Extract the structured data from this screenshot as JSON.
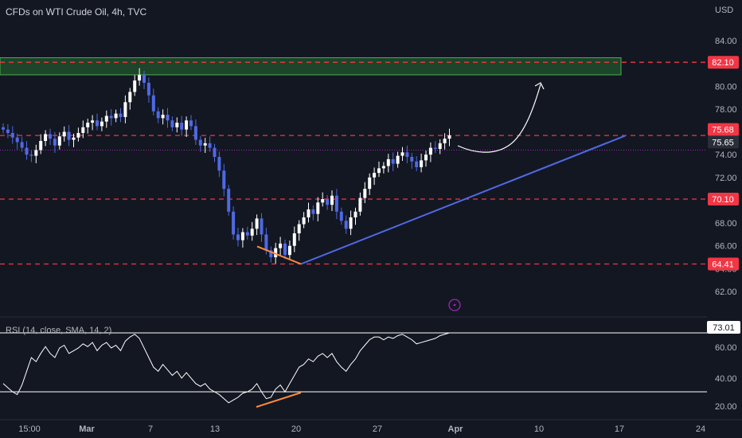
{
  "header": {
    "title": "CFDs on WTI Crude Oil, 4h, TVC",
    "currency": "USD"
  },
  "rsi": {
    "label": "RSI (14, close, SMA, 14, 2)",
    "current_value_label": "73.01",
    "ticks": [
      "60.00",
      "40.00",
      "20.00"
    ]
  },
  "price_axis": {
    "ticks": [
      "84.00",
      "82.00",
      "80.00",
      "78.00",
      "76.00",
      "74.00",
      "72.00",
      "70.00",
      "68.00",
      "66.00",
      "64.00",
      "62.00"
    ]
  },
  "time_axis": {
    "ticks": [
      "15:00",
      "Mar",
      "7",
      "13",
      "20",
      "27",
      "Apr",
      "10",
      "17",
      "24"
    ]
  },
  "levels": [
    {
      "value": "82.10",
      "color": "#f23645"
    },
    {
      "value": "75.68",
      "color": "#f23645"
    },
    {
      "value": "75.65",
      "color": "#2a2e39"
    },
    {
      "value": "70.10",
      "color": "#f23645"
    },
    {
      "value": "64.41",
      "color": "#f23645"
    }
  ],
  "colors": {
    "background": "#131722",
    "up_candle": "#ffffff",
    "down_candle": "#4f69e3",
    "support_line": "#4f69e3",
    "divergence": "#ff8a3d",
    "resistance_zone": "#1f4d2a",
    "level_line": "#f23645",
    "dotted_level": "#9c27b0",
    "rsi_line": "#ffffff"
  },
  "chart_data": {
    "type": "candlestick",
    "symbol": "CFDs on WTI Crude Oil",
    "timeframe": "4h",
    "currency": "USD",
    "approx_close_series": [
      76.2,
      75.9,
      75.5,
      75.1,
      74.6,
      74.0,
      73.9,
      74.4,
      75.2,
      75.8,
      75.4,
      74.8,
      75.6,
      76.0,
      75.3,
      75.5,
      75.9,
      76.4,
      76.8,
      77.0,
      76.5,
      76.9,
      77.4,
      77.2,
      77.6,
      77.3,
      78.6,
      79.5,
      80.5,
      81.0,
      80.3,
      79.2,
      77.8,
      77.2,
      77.5,
      77.0,
      76.4,
      76.8,
      76.2,
      77.0,
      76.5,
      75.3,
      74.8,
      75.0,
      74.6,
      73.8,
      72.6,
      71.0,
      69.0,
      67.0,
      66.5,
      67.2,
      66.9,
      67.5,
      68.4,
      67.0,
      65.6,
      65.0,
      65.8,
      66.2,
      65.2,
      66.0,
      67.1,
      67.9,
      68.5,
      69.2,
      68.8,
      69.8,
      70.1,
      69.6,
      70.4,
      69.0,
      68.2,
      67.5,
      68.5,
      69.0,
      70.2,
      71.0,
      72.0,
      72.4,
      72.8,
      73.0,
      73.6,
      73.2,
      73.9,
      74.2,
      73.8,
      73.4,
      72.9,
      73.5,
      74.0,
      74.6,
      74.5,
      75.0,
      75.4,
      75.68
    ],
    "horizontal_levels": [
      82.1,
      75.68,
      70.1,
      64.41
    ],
    "resistance_zone": [
      81.0,
      82.5
    ],
    "rsi": {
      "period": 14,
      "current": 73.01,
      "levels": [
        70,
        30
      ],
      "approx_values": [
        36,
        33,
        30,
        28,
        35,
        45,
        55,
        52,
        58,
        63,
        58,
        55,
        62,
        64,
        58,
        60,
        62,
        65,
        63,
        66,
        60,
        64,
        66,
        62,
        64,
        60,
        67,
        70,
        72,
        69,
        62,
        55,
        48,
        45,
        50,
        46,
        42,
        45,
        40,
        44,
        40,
        36,
        34,
        36,
        32,
        30,
        28,
        25,
        22,
        24,
        26,
        29,
        30,
        32,
        36,
        30,
        25,
        26,
        32,
        35,
        30,
        36,
        42,
        48,
        50,
        54,
        52,
        56,
        58,
        55,
        58,
        52,
        48,
        45,
        50,
        54,
        60,
        64,
        68,
        70,
        70,
        68,
        70,
        69,
        71,
        72,
        70,
        68,
        65,
        66,
        67,
        68,
        69,
        71,
        72,
        73.01
      ]
    }
  }
}
